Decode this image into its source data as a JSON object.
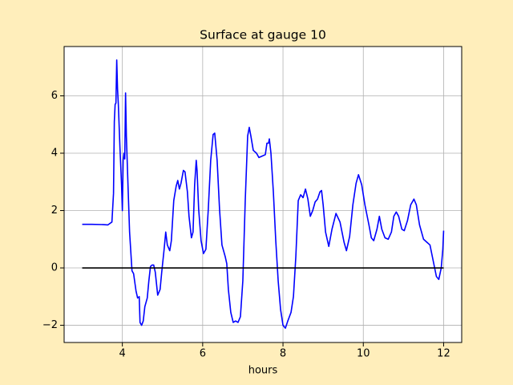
{
  "chart_data": {
    "type": "line",
    "title": "Surface at gauge 10",
    "x_label": "hours",
    "xlim": [
      2.55,
      12.45
    ],
    "ylim": [
      -2.6,
      7.72
    ],
    "xticks": [
      4,
      6,
      8,
      10,
      12
    ],
    "yticks": [
      {
        "value": -2,
        "label": "−2"
      },
      0,
      2,
      4,
      6
    ],
    "grid": true,
    "series": [
      {
        "color": "#0000ff",
        "x": [
          3.0,
          3.24,
          3.54,
          3.64,
          3.74,
          3.78,
          3.8,
          3.82,
          3.84,
          3.86,
          3.88,
          3.9,
          3.94,
          3.98,
          4.0,
          4.02,
          4.04,
          4.06,
          4.08,
          4.1,
          4.14,
          4.18,
          4.24,
          4.28,
          4.34,
          4.38,
          4.42,
          4.44,
          4.48,
          4.52,
          4.56,
          4.62,
          4.66,
          4.7,
          4.74,
          4.78,
          4.82,
          4.88,
          4.94,
          4.98,
          5.04,
          5.08,
          5.12,
          5.18,
          5.22,
          5.28,
          5.34,
          5.38,
          5.42,
          5.46,
          5.52,
          5.56,
          5.62,
          5.66,
          5.72,
          5.76,
          5.8,
          5.84,
          5.86,
          5.9,
          5.96,
          6.02,
          6.08,
          6.14,
          6.2,
          6.26,
          6.3,
          6.36,
          6.42,
          6.48,
          6.56,
          6.6,
          6.64,
          6.7,
          6.76,
          6.82,
          6.88,
          6.94,
          7.0,
          7.06,
          7.12,
          7.16,
          7.2,
          7.26,
          7.34,
          7.4,
          7.48,
          7.56,
          7.6,
          7.64,
          7.66,
          7.7,
          7.76,
          7.82,
          7.88,
          7.94,
          8.0,
          8.06,
          8.12,
          8.2,
          8.26,
          8.32,
          8.38,
          8.44,
          8.5,
          8.56,
          8.62,
          8.68,
          8.74,
          8.8,
          8.86,
          8.92,
          8.96,
          9.0,
          9.06,
          9.14,
          9.22,
          9.32,
          9.42,
          9.52,
          9.58,
          9.66,
          9.74,
          9.82,
          9.88,
          9.96,
          10.04,
          10.14,
          10.2,
          10.26,
          10.34,
          10.4,
          10.46,
          10.54,
          10.62,
          10.7,
          10.76,
          10.82,
          10.88,
          10.96,
          11.02,
          11.1,
          11.18,
          11.26,
          11.32,
          11.4,
          11.5,
          11.58,
          11.66,
          11.74,
          11.82,
          11.88,
          11.94,
          11.98,
          12.0
        ],
        "values": [
          1.52,
          1.52,
          1.51,
          1.5,
          1.6,
          2.6,
          5.1,
          5.7,
          5.75,
          7.25,
          6.25,
          5.7,
          4.2,
          2.9,
          2.0,
          3.75,
          4.0,
          3.8,
          6.1,
          4.6,
          2.9,
          1.25,
          -0.1,
          -0.2,
          -0.8,
          -1.05,
          -1.0,
          -1.9,
          -2.0,
          -1.85,
          -1.35,
          -1.05,
          -0.45,
          0.05,
          0.1,
          0.1,
          -0.15,
          -0.95,
          -0.75,
          -0.15,
          0.65,
          1.25,
          0.8,
          0.6,
          0.95,
          2.35,
          2.85,
          3.05,
          2.75,
          2.95,
          3.4,
          3.35,
          2.65,
          1.8,
          1.05,
          1.25,
          2.9,
          3.75,
          3.4,
          2.05,
          0.95,
          0.5,
          0.65,
          2.05,
          3.75,
          4.65,
          4.7,
          3.75,
          2.05,
          0.8,
          0.4,
          0.15,
          -0.75,
          -1.55,
          -1.9,
          -1.85,
          -1.9,
          -1.7,
          -0.45,
          2.35,
          4.6,
          4.9,
          4.6,
          4.1,
          4.0,
          3.85,
          3.9,
          3.95,
          4.35,
          4.35,
          4.5,
          4.0,
          2.65,
          0.95,
          -0.45,
          -1.45,
          -2.0,
          -2.1,
          -1.85,
          -1.55,
          -1.0,
          0.4,
          2.35,
          2.55,
          2.45,
          2.75,
          2.4,
          1.8,
          2.0,
          2.3,
          2.4,
          2.65,
          2.7,
          2.2,
          1.25,
          0.75,
          1.35,
          1.9,
          1.6,
          0.9,
          0.6,
          1.1,
          2.2,
          2.95,
          3.25,
          2.9,
          2.2,
          1.5,
          1.05,
          0.95,
          1.35,
          1.8,
          1.35,
          1.05,
          1.0,
          1.25,
          1.8,
          1.95,
          1.8,
          1.35,
          1.3,
          1.65,
          2.2,
          2.4,
          2.2,
          1.5,
          1.0,
          0.9,
          0.8,
          0.25,
          -0.3,
          -0.4,
          0,
          0.65,
          1.3
        ]
      },
      {
        "color": "#000000",
        "x": [
          3,
          12
        ],
        "values": [
          0,
          0
        ]
      }
    ]
  }
}
